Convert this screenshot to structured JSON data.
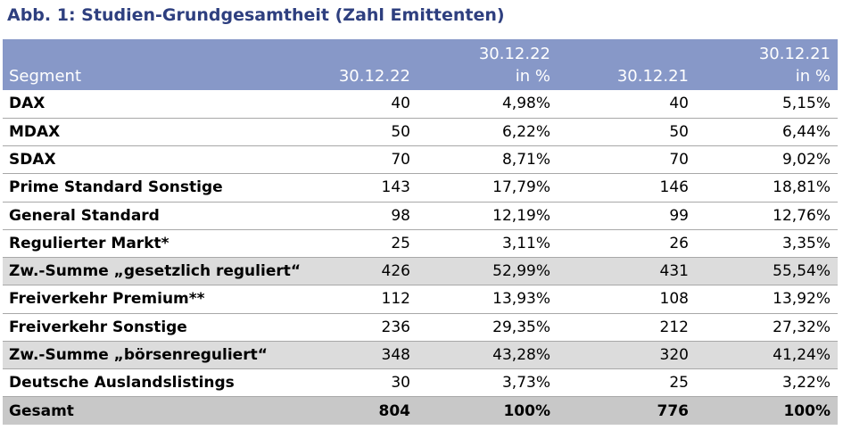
{
  "figure": {
    "title": "Abb. 1: Studien-Grundgesamtheit (Zahl Emittenten)"
  },
  "table": {
    "headers": {
      "segment": "Segment",
      "col1": "30.12.22",
      "col2_line1": "30.12.22",
      "col2_line2": "in %",
      "col3": "30.12.21",
      "col4_line1": "30.12.21",
      "col4_line2": "in %"
    },
    "rows": [
      {
        "segment": "DAX",
        "n22": "40",
        "p22": "4,98%",
        "n21": "40",
        "p21": "5,15%"
      },
      {
        "segment": "MDAX",
        "n22": "50",
        "p22": "6,22%",
        "n21": "50",
        "p21": "6,44%"
      },
      {
        "segment": "SDAX",
        "n22": "70",
        "p22": "8,71%",
        "n21": "70",
        "p21": "9,02%"
      },
      {
        "segment": "Prime Standard Sonstige",
        "n22": "143",
        "p22": "17,79%",
        "n21": "146",
        "p21": "18,81%"
      },
      {
        "segment": "General Standard",
        "n22": "98",
        "p22": "12,19%",
        "n21": "99",
        "p21": "12,76%"
      },
      {
        "segment": "Regulierter Markt*",
        "n22": "25",
        "p22": "3,11%",
        "n21": "26",
        "p21": "3,35%"
      },
      {
        "segment": "Zw.-Summe „gesetzlich reguliert“",
        "n22": "426",
        "p22": "52,99%",
        "n21": "431",
        "p21": "55,54%"
      },
      {
        "segment": "Freiverkehr Premium**",
        "n22": "112",
        "p22": "13,93%",
        "n21": "108",
        "p21": "13,92%"
      },
      {
        "segment": "Freiverkehr Sonstige",
        "n22": "236",
        "p22": "29,35%",
        "n21": "212",
        "p21": "27,32%"
      },
      {
        "segment": "Zw.-Summe „börsenreguliert“",
        "n22": "348",
        "p22": "43,28%",
        "n21": "320",
        "p21": "41,24%"
      },
      {
        "segment": "Deutsche Auslandslistings",
        "n22": "30",
        "p22": "3,73%",
        "n21": "25",
        "p21": "3,22%"
      },
      {
        "segment": "Gesamt",
        "n22": "804",
        "p22": "100%",
        "n21": "776",
        "p21": "100%"
      }
    ]
  }
}
